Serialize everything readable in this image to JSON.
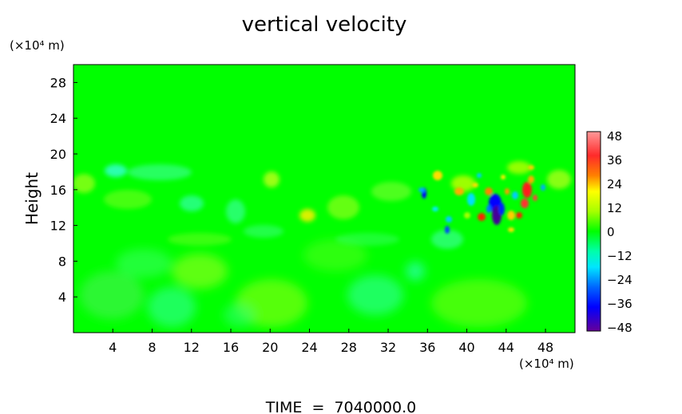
{
  "chart_data": {
    "type": "heatmap",
    "title": "vertical velocity",
    "ylabel": "Height",
    "y_unit": "(×10⁴ m)",
    "x_unit": "(×10⁴ m)",
    "footer": "TIME  =  7040000.0",
    "xlim": [
      0,
      51
    ],
    "ylim": [
      0,
      30
    ],
    "x_ticks": [
      "4",
      "8",
      "12",
      "16",
      "20",
      "24",
      "28",
      "32",
      "36",
      "40",
      "44",
      "48"
    ],
    "y_ticks": [
      "4",
      "8",
      "12",
      "16",
      "20",
      "24",
      "28"
    ],
    "colorbar": {
      "range": [
        -48,
        48
      ],
      "labels": [
        "48",
        "36",
        "24",
        "12",
        "0",
        "−12",
        "−24",
        "−36",
        "−48"
      ],
      "colors": [
        "#ff9999",
        "#ff4d4d",
        "#ff0000",
        "#ff8000",
        "#ffff00",
        "#c0ff00",
        "#66ff00",
        "#00ff00",
        "#00ff66",
        "#00ffcc",
        "#00ccff",
        "#0066ff",
        "#0000ff",
        "#3300cc",
        "#660099",
        "#5500aa"
      ]
    },
    "background_color": "#00ff00",
    "features": [
      {
        "x": 35.5,
        "y": 15.5,
        "value": -30
      },
      {
        "x": 42.5,
        "y": 12.8,
        "value": -45
      },
      {
        "x": 43.5,
        "y": 14.0,
        "value": -36
      },
      {
        "x": 45.5,
        "y": 16.0,
        "value": 36
      },
      {
        "x": 46.5,
        "y": 13.5,
        "value": 30
      },
      {
        "x": 41.0,
        "y": 12.5,
        "value": 24
      },
      {
        "x": 23.5,
        "y": 13.0,
        "value": 20
      },
      {
        "x": 38.0,
        "y": 11.0,
        "value": -20
      },
      {
        "x": 37.0,
        "y": 16.0,
        "value": 18
      },
      {
        "x": 4.0,
        "y": 18.0,
        "value": -10
      }
    ]
  }
}
